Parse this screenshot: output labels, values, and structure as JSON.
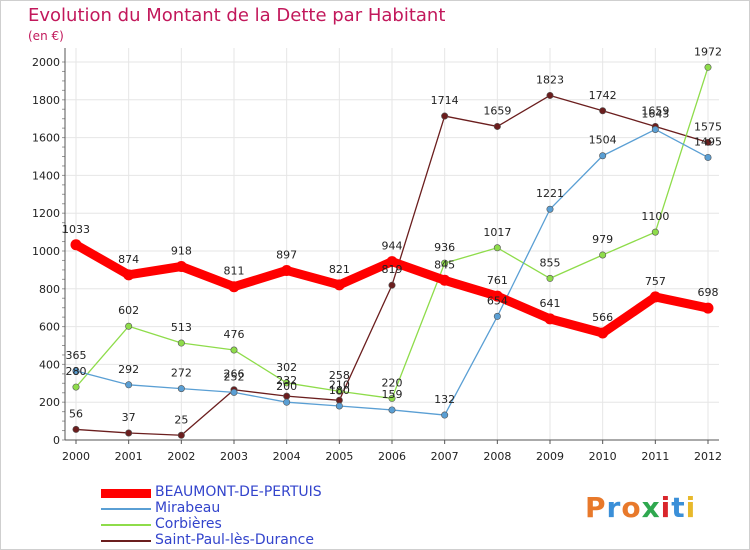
{
  "header": {
    "title": "Evolution du Montant de la Dette par Habitant",
    "subtitle": "(en €)"
  },
  "logo": {
    "text": "Proxiti",
    "letters": [
      "P",
      "r",
      "o",
      "x",
      "i",
      "t",
      "i"
    ],
    "colors": [
      "#e8792b",
      "#3a8fd8",
      "#e8792b",
      "#2fa84f",
      "#d9262c",
      "#3a8fd8",
      "#e8b92b"
    ]
  },
  "chart_data": {
    "type": "line",
    "title": "Evolution du Montant de la Dette par Habitant",
    "subtitle": "(en €)",
    "xlabel": "",
    "ylabel": "",
    "categories": [
      "2000",
      "2001",
      "2002",
      "2003",
      "2004",
      "2005",
      "2006",
      "2007",
      "2008",
      "2009",
      "2010",
      "2011",
      "2012"
    ],
    "ylim": [
      0,
      2000
    ],
    "yticks": [
      0,
      200,
      400,
      600,
      800,
      1000,
      1200,
      1400,
      1600,
      1800,
      2000
    ],
    "grid": true,
    "legend_position": "bottom",
    "series": [
      {
        "name": "BEAUMONT-DE-PERTUIS",
        "color": "#ff0000",
        "values": [
          1033,
          874,
          918,
          811,
          897,
          821,
          944,
          845,
          761,
          641,
          566,
          757,
          698
        ]
      },
      {
        "name": "Mirabeau",
        "color": "#5a9fd4",
        "values": [
          365,
          292,
          272,
          252,
          200,
          180,
          159,
          132,
          654,
          1221,
          1504,
          1643,
          1495
        ]
      },
      {
        "name": "Corbières",
        "color": "#8edc4a",
        "values": [
          280,
          602,
          513,
          476,
          302,
          258,
          220,
          936,
          1017,
          855,
          979,
          1100,
          1972
        ]
      },
      {
        "name": "Saint-Paul-lès-Durance",
        "color": "#6b1e1e",
        "values": [
          56,
          37,
          25,
          266,
          232,
          210,
          819,
          1714,
          1659,
          1823,
          1742,
          1659,
          1575
        ]
      }
    ]
  }
}
